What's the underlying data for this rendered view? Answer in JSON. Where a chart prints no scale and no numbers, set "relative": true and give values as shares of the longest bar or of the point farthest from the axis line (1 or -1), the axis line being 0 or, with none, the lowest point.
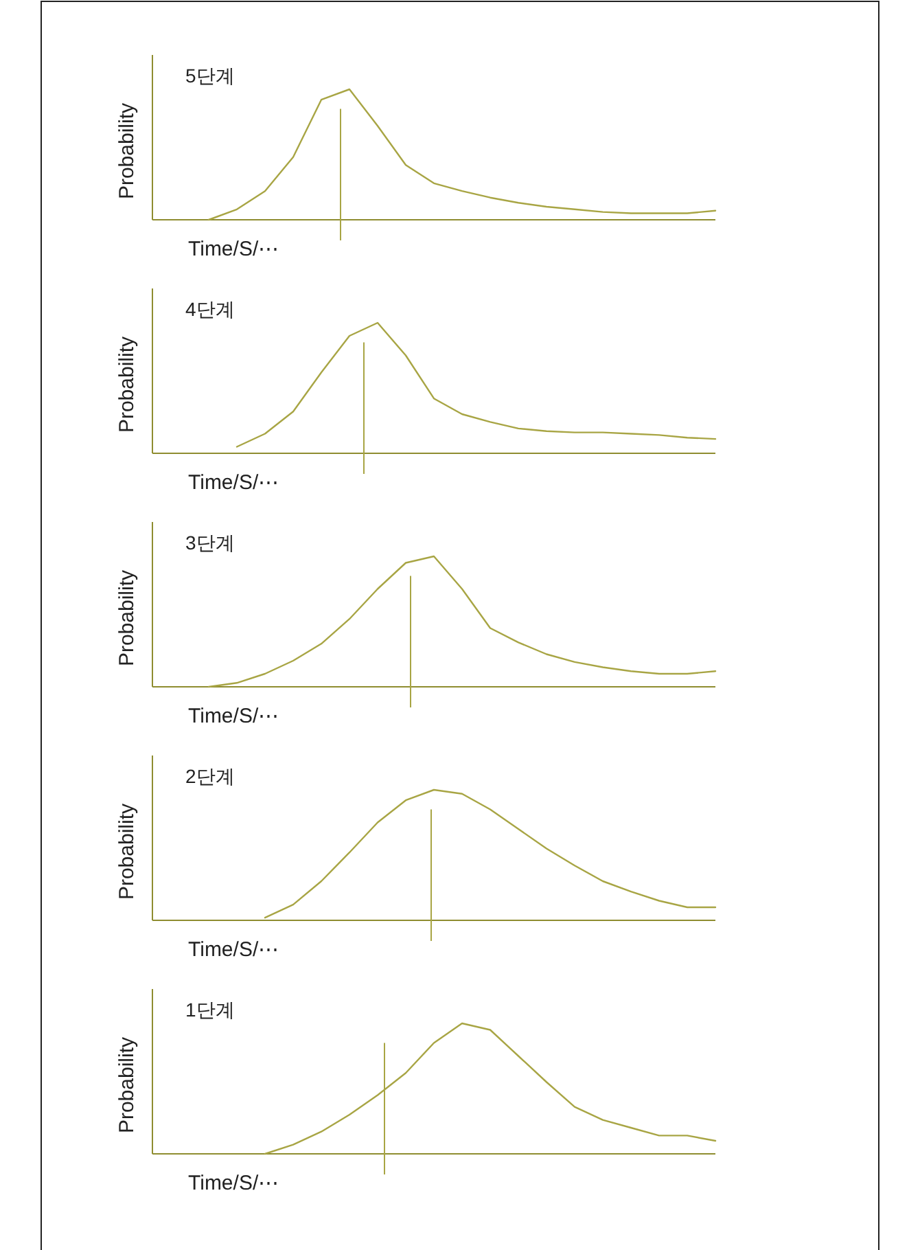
{
  "chart_data": [
    {
      "type": "line",
      "title": "5단계",
      "xlabel": "Time/S/⋯",
      "ylabel": "Probability",
      "relative": true,
      "categories": [
        null,
        null,
        null,
        null,
        null,
        null,
        null,
        null,
        null,
        null,
        null,
        null,
        null,
        null,
        null,
        null,
        null,
        null,
        null,
        null,
        null
      ],
      "series": [
        {
          "color": "#a8a544",
          "values": [
            null,
            null,
            0,
            0.08,
            0.22,
            0.48,
            0.92,
            1.0,
            0.72,
            0.42,
            0.28,
            0.22,
            0.17,
            0.13,
            0.1,
            0.08,
            0.06,
            0.05,
            0.05,
            0.05,
            0.07
          ]
        }
      ]
    },
    {
      "type": "line",
      "title": "4단계",
      "xlabel": "Time/S/⋯",
      "ylabel": "Probability",
      "relative": true,
      "categories": [
        null,
        null,
        null,
        null,
        null,
        null,
        null,
        null,
        null,
        null,
        null,
        null,
        null,
        null,
        null,
        null,
        null,
        null,
        null,
        null,
        null
      ],
      "series": [
        {
          "color": "#a8a544",
          "values": [
            null,
            null,
            null,
            0.05,
            0.15,
            0.32,
            0.62,
            0.9,
            1.0,
            0.75,
            0.42,
            0.3,
            0.24,
            0.19,
            0.17,
            0.16,
            0.16,
            0.15,
            0.14,
            0.12,
            0.11
          ]
        }
      ]
    },
    {
      "type": "line",
      "title": "3단계",
      "xlabel": "Time/S/⋯",
      "ylabel": "Probability",
      "relative": true,
      "categories": [
        null,
        null,
        null,
        null,
        null,
        null,
        null,
        null,
        null,
        null,
        null,
        null,
        null,
        null,
        null,
        null,
        null,
        null,
        null,
        null,
        null
      ],
      "series": [
        {
          "color": "#a8a544",
          "values": [
            null,
            null,
            0,
            0.03,
            0.1,
            0.2,
            0.33,
            0.52,
            0.75,
            0.95,
            1.0,
            0.75,
            0.45,
            0.34,
            0.25,
            0.19,
            0.15,
            0.12,
            0.1,
            0.1,
            0.12
          ]
        }
      ]
    },
    {
      "type": "line",
      "title": "2단계",
      "xlabel": "Time/S/⋯",
      "ylabel": "Probability",
      "relative": true,
      "categories": [
        null,
        null,
        null,
        null,
        null,
        null,
        null,
        null,
        null,
        null,
        null,
        null,
        null,
        null,
        null,
        null,
        null,
        null,
        null,
        null,
        null
      ],
      "series": [
        {
          "color": "#a8a544",
          "values": [
            null,
            null,
            null,
            null,
            0.02,
            0.12,
            0.3,
            0.52,
            0.75,
            0.92,
            1.0,
            0.97,
            0.85,
            0.7,
            0.55,
            0.42,
            0.3,
            0.22,
            0.15,
            0.1,
            0.1
          ]
        }
      ]
    },
    {
      "type": "line",
      "title": "1단계",
      "xlabel": "Time/S/⋯",
      "ylabel": "Probability",
      "relative": true,
      "categories": [
        null,
        null,
        null,
        null,
        null,
        null,
        null,
        null,
        null,
        null,
        null,
        null,
        null,
        null,
        null,
        null,
        null,
        null,
        null,
        null,
        null
      ],
      "series": [
        {
          "color": "#a8a544",
          "values": [
            null,
            null,
            null,
            null,
            0,
            0.07,
            0.17,
            0.3,
            0.45,
            0.62,
            0.85,
            1.0,
            0.95,
            0.75,
            0.55,
            0.36,
            0.26,
            0.2,
            0.14,
            0.14,
            0.1
          ]
        }
      ]
    }
  ]
}
